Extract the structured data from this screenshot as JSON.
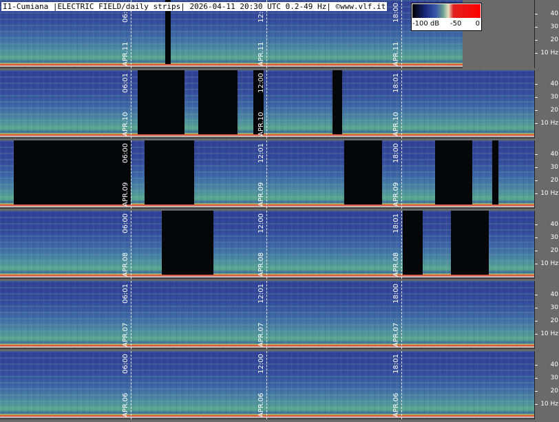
{
  "header": {
    "title": "I1-Cumiana |ELECTRIC FIELD/daily strips| 2026-04-11 20:30 UTC 0.2-49 Hz| ©www.vlf.it"
  },
  "colorbar": {
    "labels": [
      "-100 dB",
      "-50",
      "0"
    ]
  },
  "strips": [
    {
      "date": "APR.11",
      "times": [
        "06:00",
        "12:01",
        "18:00"
      ],
      "yticks": [
        "40",
        "30",
        "20",
        "10 Hz"
      ]
    },
    {
      "date": "APR.10",
      "times": [
        "06:01",
        "12:00",
        "18:01"
      ],
      "yticks": [
        "40",
        "30",
        "20",
        "10 Hz"
      ]
    },
    {
      "date": "APR.09",
      "times": [
        "06:00",
        "12:01",
        "18:00"
      ],
      "yticks": [
        "40",
        "30",
        "20",
        "10 Hz"
      ]
    },
    {
      "date": "APR.08",
      "times": [
        "06:00",
        "12:00",
        "18:01"
      ],
      "yticks": [
        "40",
        "30",
        "20",
        "10 Hz"
      ]
    },
    {
      "date": "APR.07",
      "times": [
        "06:01",
        "12:01",
        "18:00"
      ],
      "yticks": [
        "40",
        "30",
        "20",
        "10 Hz"
      ]
    },
    {
      "date": "APR.06",
      "times": [
        "06:00",
        "12:00",
        "18:01"
      ],
      "yticks": [
        "40",
        "30",
        "20",
        "10 Hz"
      ]
    }
  ]
}
